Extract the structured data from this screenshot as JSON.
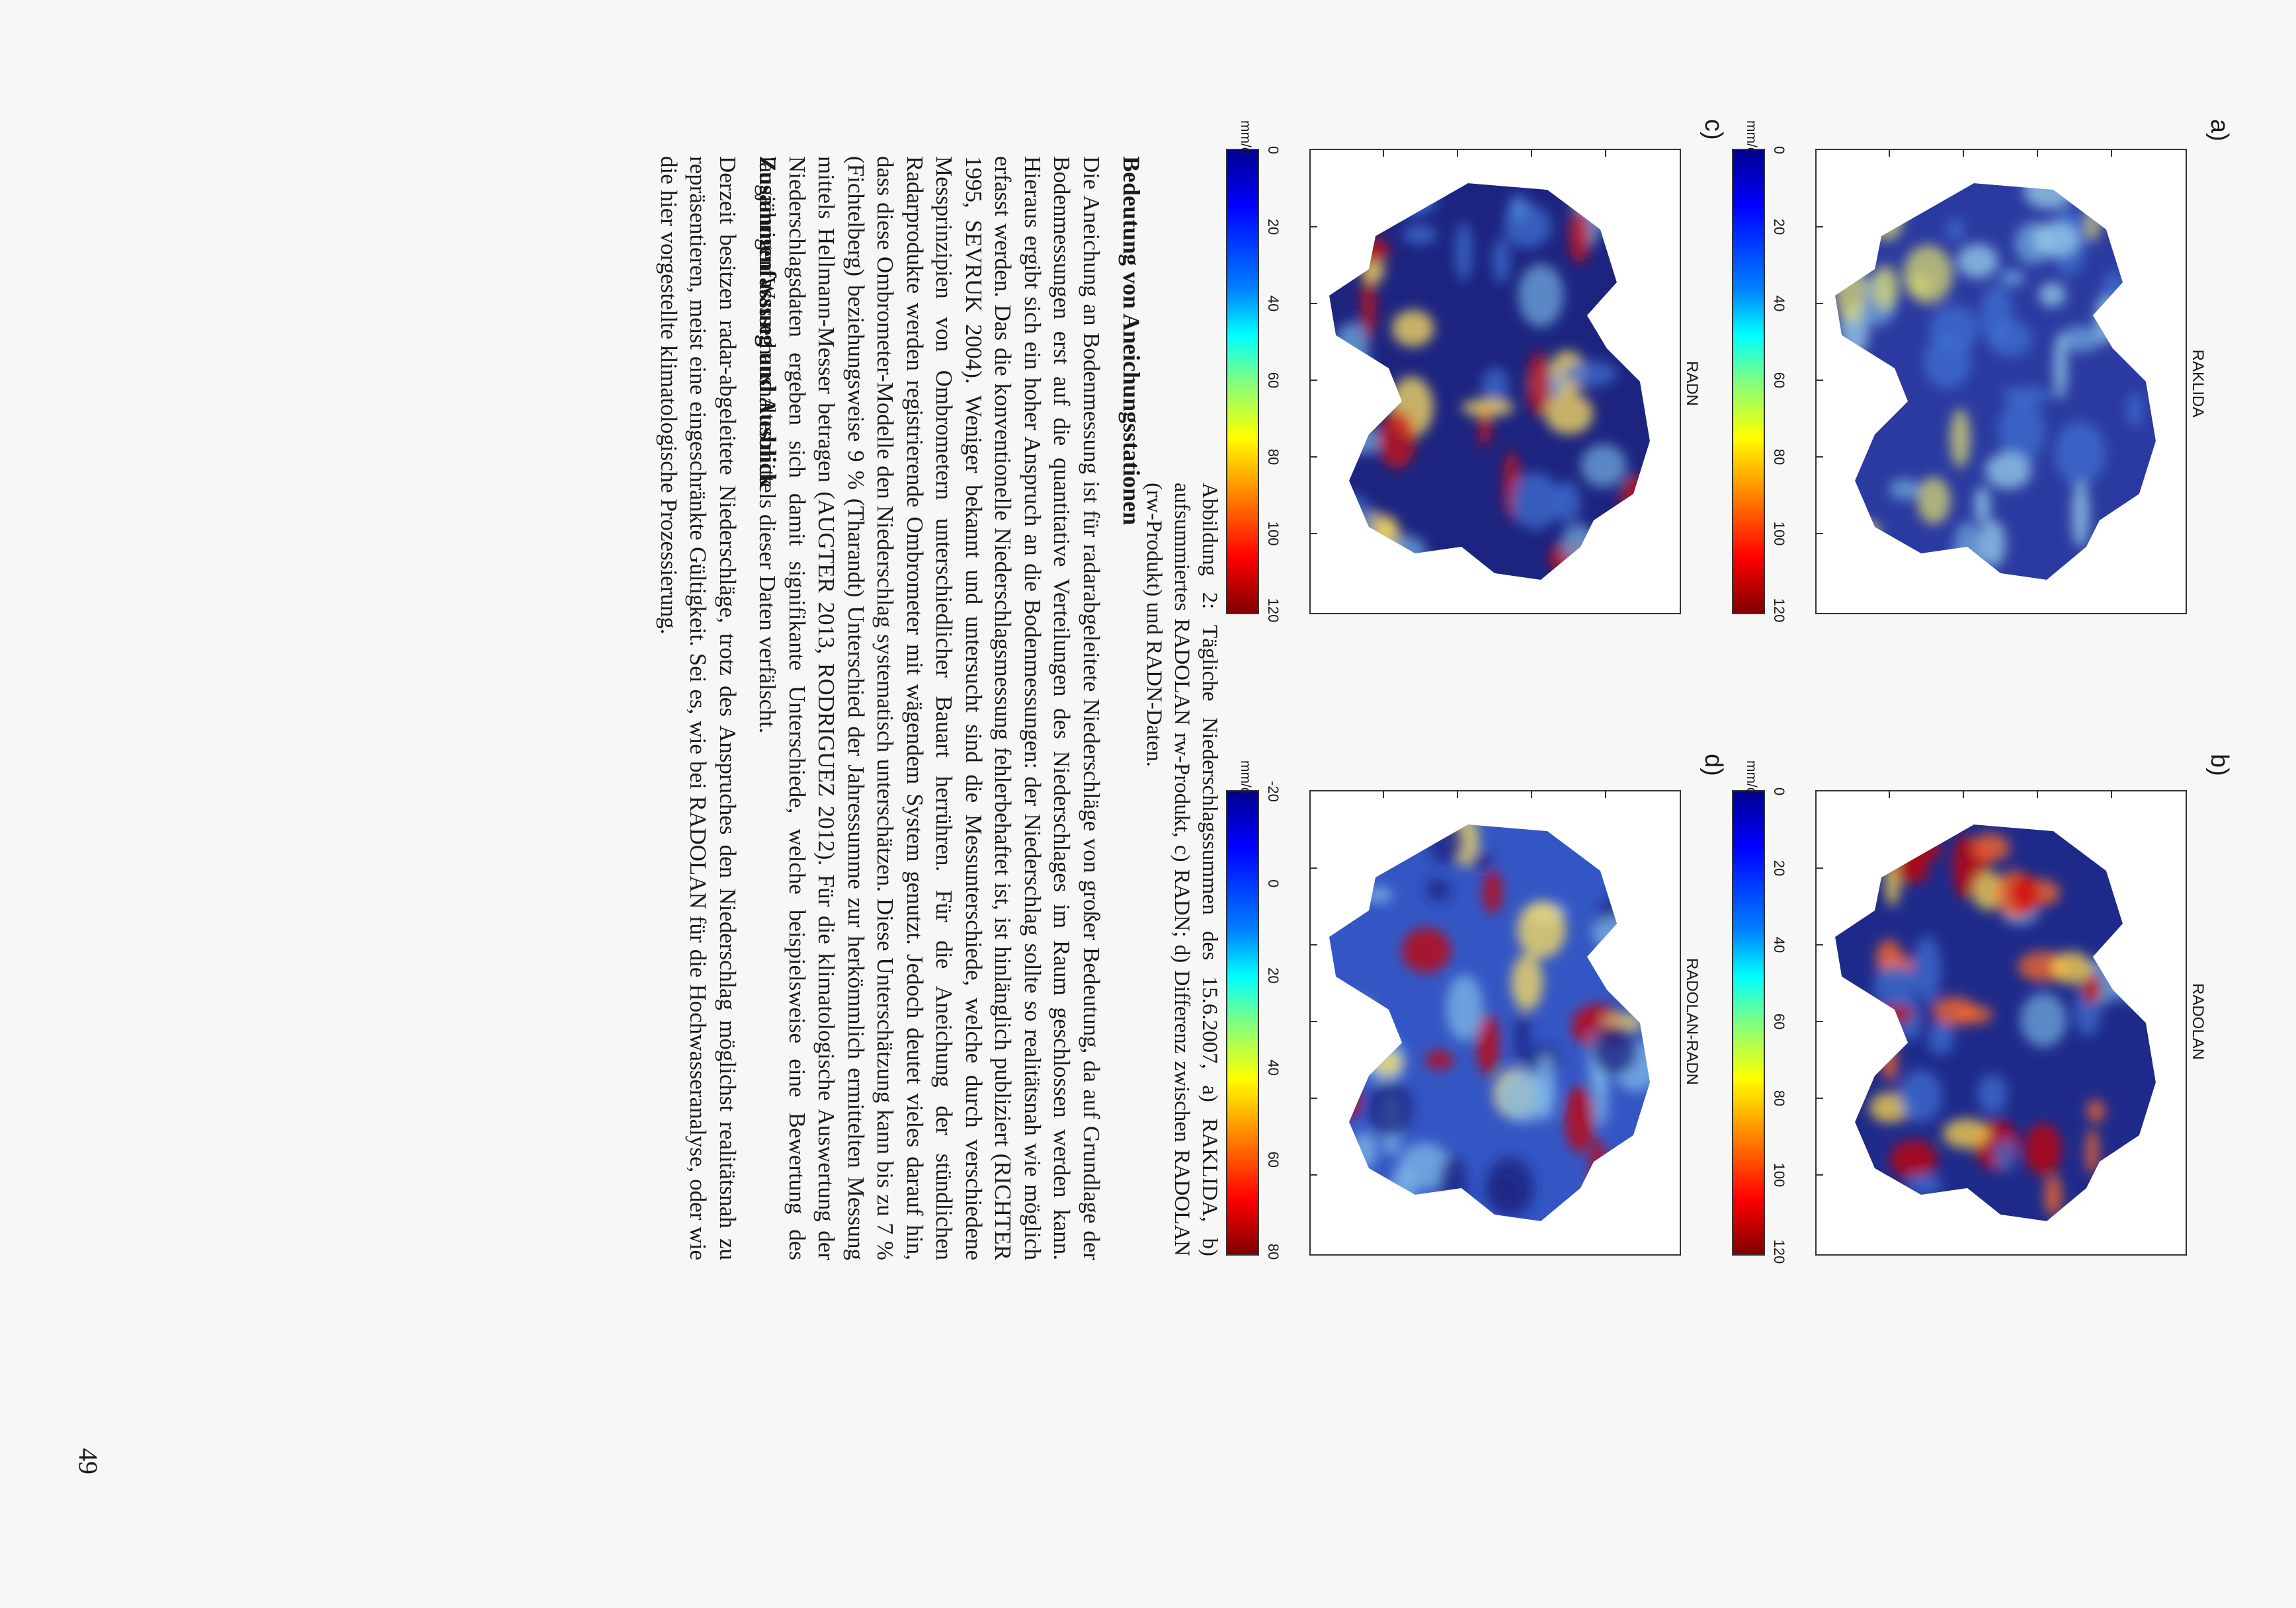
{
  "figure": {
    "panels": [
      {
        "letter": "a)",
        "title": "RAKLIDA",
        "unit": "mm/d",
        "ticks": [
          "0",
          "20",
          "40",
          "60",
          "80",
          "100",
          "120"
        ],
        "colormap": "jet"
      },
      {
        "letter": "b)",
        "title": "RADOLAN",
        "unit": "mm/d",
        "ticks": [
          "0",
          "20",
          "40",
          "60",
          "80",
          "100",
          "120"
        ],
        "colormap": "jet"
      },
      {
        "letter": "c)",
        "title": "RADN",
        "unit": "mm/d",
        "ticks": [
          "0",
          "20",
          "40",
          "60",
          "80",
          "100",
          "120"
        ],
        "colormap": "jet"
      },
      {
        "letter": "d)",
        "title": "RADOLAN-RADN",
        "unit": "mm/d",
        "ticks": [
          "-20",
          "0",
          "20",
          "40",
          "60",
          "80"
        ],
        "colormap": "jet"
      }
    ],
    "caption": "Abbildung 2: Tägliche Niederschlagssummen des 15.6.2007, a) RAKLIDA, b) aufsummiertes RADOLAN rw-Produkt, c) RADN; d) Differenz zwischen RADOLAN (rw-Produkt) und RADN-Daten."
  },
  "section1": {
    "heading": "Bedeutung von Aneichungsstationen",
    "body": "Die Aneichung an Bodenmessung ist für radarabgeleitete Niederschläge von großer Bedeutung, da auf Grundlage der Bodenmessungen erst auf die quantitative Verteilungen des Niederschlages im Raum geschlossen werden kann. Hieraus ergibt sich ein hoher Anspruch an die Bodenmessungen: der Niederschlag sollte so realitätsnah wie möglich erfasst werden. Das die konventionelle Niederschlagsmessung fehlerbehaftet ist, ist hinlänglich publiziert (RICHTER 1995, SEVRUK 2004). Weniger bekannt und untersucht sind die Messunterschiede, welche durch verschiedene Messprinzipien von Ombrometern unterschiedlicher Bauart herrühren. Für die Aneichung der stündlichen Radarprodukte werden registrierende Ombrometer mit wägendem System genutzt. Jedoch deutet vieles darauf hin, dass diese Ombrometer-Modelle den Niederschlag systematisch unterschätzen. Diese Unterschätzung kann bis zu 7 % (Fichtelberg) beziehungsweise 9 % (Tharandt) Unterschied der Jahressumme zur herkömmlich ermittelten Messung mittels Hellmann-Messer betragen (AUGTER 2013, RODRIGUEZ 2012). Für die klimatologische Auswertung der Niederschlagsdaten ergeben sich damit signifikante Unterschiede, welche beispielsweise eine Bewertung des langjährigen Wasserhaushaltes mittels dieser Daten verfälscht."
  },
  "section2": {
    "heading": "Zusammenfassung und Ausblick",
    "body": "Derzeit besitzen radar-abgeleitete Niederschläge, trotz des Anspruches den Niederschlag möglichst realitätsnah zu repräsentieren, meist eine eingeschränkte Gültigkeit. Sei es, wie bei RADOLAN für die Hochwasseranalyse, oder wie die hier vorgestellte klimatologische Prozessierung."
  },
  "page_number": "49"
}
